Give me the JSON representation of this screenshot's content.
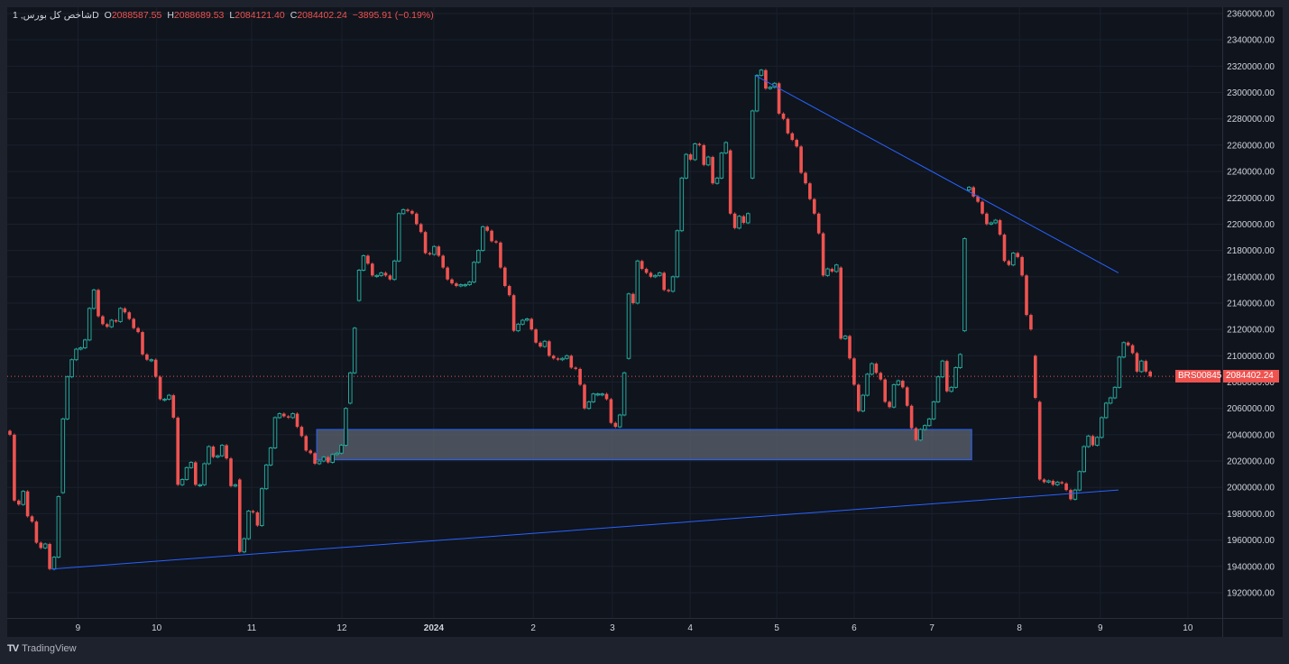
{
  "header": {
    "symbol_title": "شاخص کل بورس, 1D",
    "open_label": "O",
    "open": "2088587.55",
    "high_label": "H",
    "high": "2088689.53",
    "low_label": "L",
    "low": "2084121.40",
    "close_label": "C",
    "close": "2084402.24",
    "change": "−3895.91 (−0.19%)"
  },
  "footer": {
    "brand": "TradingView"
  },
  "last_price": {
    "symbol_label": "BRS00845",
    "price_label": "2084402.24",
    "value": 2084402.24
  },
  "colors": {
    "up": "#26a69a",
    "down": "#ef5350",
    "trendline": "#2962ff",
    "zone_fill": "#5d6470",
    "zone_border": "#2962ff",
    "background": "#0f141d"
  },
  "chart_data": {
    "type": "candlestick",
    "interval": "1D",
    "ylim": [
      1910000,
      2365000
    ],
    "grid": true,
    "y_ticks": [
      "2360000.00",
      "2340000.00",
      "2320000.00",
      "2300000.00",
      "2280000.00",
      "2260000.00",
      "2240000.00",
      "2220000.00",
      "2200000.00",
      "2180000.00",
      "2160000.00",
      "2140000.00",
      "2120000.00",
      "2100000.00",
      "2080000.00",
      "2060000.00",
      "2040000.00",
      "2020000.00",
      "2000000.00",
      "1980000.00",
      "1960000.00",
      "1940000.00",
      "1920000.00"
    ],
    "x_ticks": [
      {
        "label": "9",
        "bar": 15.4
      },
      {
        "label": "10",
        "bar": 33.2
      },
      {
        "label": "11",
        "bar": 54.7
      },
      {
        "label": "12",
        "bar": 75.1
      },
      {
        "label": "2024",
        "bar": 95.9
      },
      {
        "label": "2",
        "bar": 118.4
      },
      {
        "label": "3",
        "bar": 136.3
      },
      {
        "label": "4",
        "bar": 153.9
      },
      {
        "label": "5",
        "bar": 173.5
      },
      {
        "label": "6",
        "bar": 191.0
      },
      {
        "label": "7",
        "bar": 208.6
      },
      {
        "label": "8",
        "bar": 228.4
      },
      {
        "label": "9",
        "bar": 246.7
      },
      {
        "label": "10",
        "bar": 266.5
      }
    ],
    "first_open": 2043000,
    "gap_opens": {
      "12": 1996,
      "52": 2006,
      "77": 2064,
      "79": 2142,
      "140": 2098,
      "163": 2256,
      "168": 2235,
      "188": 2167,
      "216": 2119,
      "217": 2226,
      "232": 2100,
      "233": 2065
    },
    "closes_thousands_note": "",
    "closes": [
      2040,
      1990,
      1987,
      1997,
      1978,
      1974,
      1958,
      1954,
      1957,
      1938,
      1947,
      1993,
      2052,
      2084,
      2097,
      2105,
      2106,
      2112,
      2136,
      2150,
      2130,
      2124,
      2122,
      2127,
      2126,
      2136,
      2133,
      2128,
      2121,
      2118,
      2101,
      2097,
      2097,
      2084,
      2067,
      2067,
      2070,
      2053,
      2002,
      2006,
      2015,
      2019,
      2002,
      2002,
      2018,
      2031,
      2023,
      2024,
      2032,
      2022,
      2001,
      2002,
      1951,
      1961,
      1982,
      1981,
      1971,
      1999,
      2017,
      2030,
      2053,
      2056,
      2054,
      2053,
      2056,
      2046,
      2039,
      2028,
      2026,
      2018,
      2020,
      2023,
      2019,
      2025,
      2026,
      2032,
      2060,
      2087,
      2121,
      2165,
      2176,
      2170,
      2161,
      2161,
      2163,
      2161,
      2158,
      2172,
      2208,
      2211,
      2210,
      2208,
      2200,
      2194,
      2178,
      2177,
      2183,
      2176,
      2167,
      2158,
      2155,
      2153,
      2154,
      2154,
      2156,
      2171,
      2180,
      2198,
      2195,
      2187,
      2186,
      2167,
      2153,
      2146,
      2119,
      2124,
      2127,
      2128,
      2120,
      2110,
      2107,
      2111,
      2100,
      2098,
      2097,
      2098,
      2100,
      2091,
      2090,
      2078,
      2060,
      2065,
      2071,
      2071,
      2071,
      2067,
      2049,
      2046,
      2055,
      2087,
      2147,
      2140,
      2172,
      2166,
      2163,
      2160,
      2161,
      2163,
      2150,
      2149,
      2160,
      2195,
      2235,
      2253,
      2249,
      2261,
      2260,
      2245,
      2251,
      2231,
      2235,
      2254,
      2262,
      2208,
      2197,
      2206,
      2201,
      2208,
      2286,
      2313,
      2317,
      2303,
      2304,
      2307,
      2284,
      2280,
      2269,
      2264,
      2259,
      2239,
      2231,
      2219,
      2208,
      2193,
      2161,
      2166,
      2164,
      2169,
      2113,
      2115,
      2098,
      2078,
      2058,
      2070,
      2086,
      2094,
      2087,
      2082,
      2065,
      2061,
      2078,
      2081,
      2076,
      2062,
      2045,
      2036,
      2044,
      2047,
      2052,
      2065,
      2084,
      2096,
      2073,
      2076,
      2091,
      2101,
      2189,
      2228,
      2221,
      2217,
      2208,
      2200,
      2201,
      2203,
      2192,
      2172,
      2169,
      2178,
      2175,
      2161,
      2131,
      2120,
      2068,
      2006,
      2004,
      2005,
      2002,
      2004,
      2003,
      1998,
      1991,
      1998,
      2012,
      2031,
      2039,
      2032,
      2038,
      2053,
      2064,
      2068,
      2076,
      2099,
      2110,
      2108,
      2102,
      2088,
      2096,
      2088,
      2084.402
    ],
    "drawings": {
      "trendlines": [
        {
          "from": {
            "bar": 168.6,
            "price": 2313000
          },
          "to": {
            "bar": 250.8,
            "price": 2163000
          }
        },
        {
          "from": {
            "bar": 9.4,
            "price": 1938000
          },
          "to": {
            "bar": 250.8,
            "price": 1998000
          }
        }
      ],
      "zone": {
        "from_bar": 69.4,
        "to_bar": 217.6,
        "top": 2044000,
        "bottom": 2021000
      }
    }
  }
}
